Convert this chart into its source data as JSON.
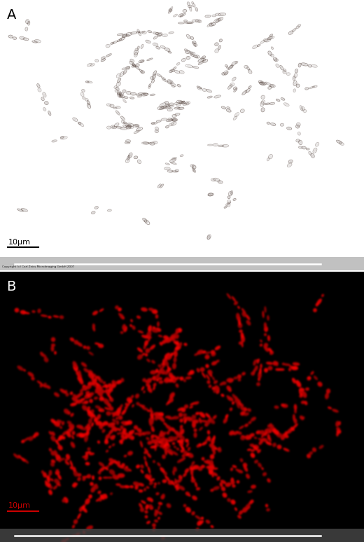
{
  "panel_A_bg": "#c8d0d8",
  "panel_B_bg": "#000000",
  "label_A": "A",
  "label_B": "B",
  "scale_label": "10μm",
  "scale_label_color_A": "#000000",
  "scale_label_color_B": "#cc0000",
  "figure_bg": "#ffffff",
  "copyright_text": "Copyright (c) Carl Zeiss MicroImaging GmbH 2007",
  "copyright_color": "#333333",
  "cells_A_color": "#60504a",
  "cells_B_color": "#dd0000"
}
